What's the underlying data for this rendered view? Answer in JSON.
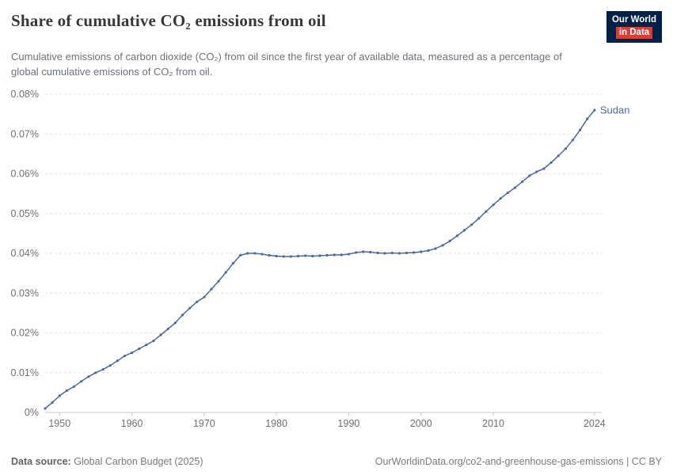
{
  "header": {
    "title": "Share of cumulative CO₂ emissions from oil",
    "logo": {
      "line1": "Our World",
      "line2": "in Data"
    }
  },
  "subtitle": "Cumulative emissions of carbon dioxide (CO₂) from oil since the first year of available data, measured as a percentage of global cumulative emissions of CO₂ from oil.",
  "footer": {
    "source_label": "Data source:",
    "source": "Global Carbon Budget (2025)",
    "right": "OurWorldinData.org/co2-and-greenhouse-gas-emissions | CC BY"
  },
  "colors": {
    "line": "#4c6a9c",
    "grid": "#e0e0e0",
    "axis": "#c8c8c8",
    "tick_text": "#6e6e6e",
    "logo_navy": "#002147",
    "logo_red": "#dc3e32"
  },
  "chart_data": {
    "type": "line",
    "title": "Share of cumulative CO₂ emissions from oil",
    "xlabel": "",
    "ylabel": "",
    "grid": "dashed horizontal gridlines",
    "legend": "end-of-line label",
    "xlim": [
      1948,
      2025
    ],
    "ylim": [
      0,
      0.08
    ],
    "yticks": [
      0,
      0.01,
      0.02,
      0.03,
      0.04,
      0.05,
      0.06,
      0.07,
      0.08
    ],
    "ytick_labels": [
      "0%",
      "0.01%",
      "0.02%",
      "0.03%",
      "0.04%",
      "0.05%",
      "0.06%",
      "0.07%",
      "0.08%"
    ],
    "xticks": [
      1950,
      1960,
      1970,
      1980,
      1990,
      2000,
      2010,
      2024
    ],
    "xtick_labels": [
      "1950",
      "1960",
      "1970",
      "1980",
      "1990",
      "2000",
      "2010",
      "2024"
    ],
    "series": [
      {
        "name": "Sudan",
        "unit": "%",
        "x": [
          1948,
          1949,
          1950,
          1951,
          1952,
          1953,
          1954,
          1955,
          1956,
          1957,
          1958,
          1959,
          1960,
          1961,
          1962,
          1963,
          1964,
          1965,
          1966,
          1967,
          1968,
          1969,
          1970,
          1971,
          1972,
          1973,
          1974,
          1975,
          1976,
          1977,
          1978,
          1979,
          1980,
          1981,
          1982,
          1983,
          1984,
          1985,
          1986,
          1987,
          1988,
          1989,
          1990,
          1991,
          1992,
          1993,
          1994,
          1995,
          1996,
          1997,
          1998,
          1999,
          2000,
          2001,
          2002,
          2003,
          2004,
          2005,
          2006,
          2007,
          2008,
          2009,
          2010,
          2011,
          2012,
          2013,
          2014,
          2015,
          2016,
          2017,
          2018,
          2019,
          2020,
          2021,
          2022,
          2023,
          2024
        ],
        "values": [
          0.001,
          0.0025,
          0.0042,
          0.0055,
          0.0065,
          0.0078,
          0.009,
          0.01,
          0.0108,
          0.0118,
          0.013,
          0.0142,
          0.015,
          0.016,
          0.017,
          0.018,
          0.0195,
          0.021,
          0.0225,
          0.0245,
          0.0262,
          0.0278,
          0.029,
          0.031,
          0.033,
          0.0352,
          0.0375,
          0.0395,
          0.04,
          0.04,
          0.0398,
          0.0395,
          0.0393,
          0.0392,
          0.0392,
          0.0393,
          0.0394,
          0.0393,
          0.0394,
          0.0395,
          0.0396,
          0.0396,
          0.0398,
          0.0402,
          0.0404,
          0.0403,
          0.0401,
          0.04,
          0.0401,
          0.04,
          0.0401,
          0.0402,
          0.0404,
          0.0407,
          0.0412,
          0.042,
          0.0431,
          0.0444,
          0.0458,
          0.0472,
          0.0488,
          0.0505,
          0.0522,
          0.0538,
          0.0552,
          0.0565,
          0.058,
          0.0595,
          0.0605,
          0.0613,
          0.0628,
          0.0645,
          0.0663,
          0.0685,
          0.071,
          0.0738,
          0.076
        ]
      }
    ]
  }
}
